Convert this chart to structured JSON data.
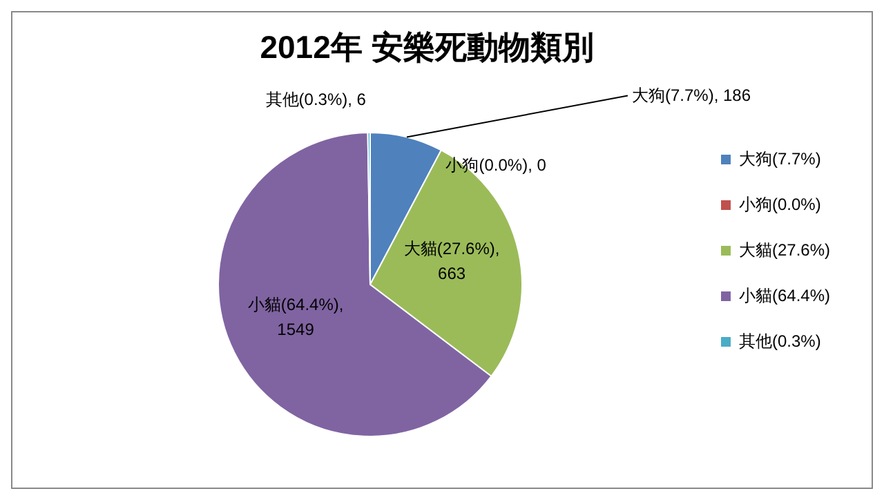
{
  "chart_data": {
    "type": "pie",
    "title": "2012年 安樂死動物類別",
    "categories": [
      "大狗(7.7%)",
      "小狗(0.0%)",
      "大貓(27.6%)",
      "小貓(64.4%)",
      "其他(0.3%)"
    ],
    "values": [
      186,
      0,
      663,
      1549,
      6
    ],
    "colors": [
      "#4f81bd",
      "#c0504d",
      "#9bbb59",
      "#8064a2",
      "#4bacc6"
    ],
    "value_labels": [
      "大狗(7.7%), 186",
      "小狗(0.0%), 0",
      "大貓(27.6%), 663",
      "小貓(64.4%), 1549",
      "其他(0.3%), 6"
    ],
    "legend": "right"
  }
}
